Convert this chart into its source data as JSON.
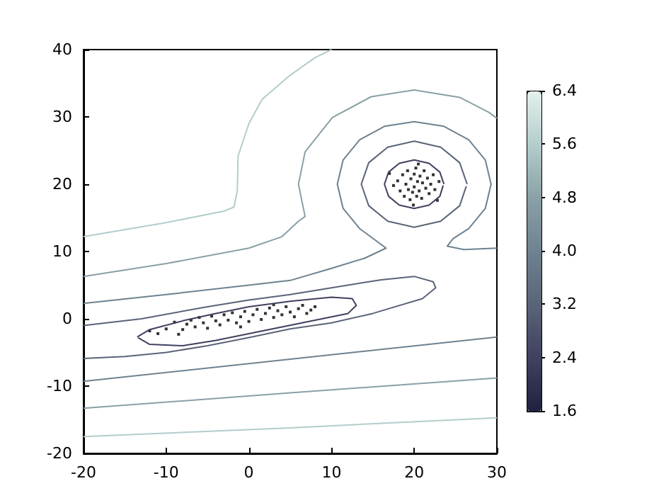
{
  "chart_data": {
    "type": "line",
    "xlim": [
      -20,
      30
    ],
    "ylim": [
      -20,
      40
    ],
    "xticks": [
      -20,
      -10,
      0,
      10,
      20,
      30
    ],
    "yticks": [
      -20,
      -10,
      0,
      10,
      20,
      30,
      40
    ],
    "grid": false,
    "clim": [
      1.6,
      6.4
    ],
    "cticks": [
      1.6,
      2.4,
      3.2,
      {
        "value": 4,
        "label": "4.0"
      },
      4.8,
      5.6,
      6.4
    ],
    "series": [
      {
        "marker": "none",
        "color": "#404060",
        "x": [
          -13.5,
          -12,
          -8,
          -4,
          0,
          5,
          10,
          12.5,
          13,
          12,
          8,
          4,
          0,
          -4,
          -8,
          -12,
          -13.4
        ],
        "values": [
          -2.7,
          -1.6,
          -0.3,
          0.8,
          1.8,
          2.6,
          3.2,
          3,
          2,
          0.8,
          -0.2,
          -1.2,
          -2.2,
          -3.2,
          -4,
          -3.8,
          -2.8
        ]
      },
      {
        "marker": "none",
        "color": "#404060",
        "x": [
          23.6,
          23.1,
          21.8,
          20,
          18.2,
          16.9,
          16.4,
          16.9,
          18.2,
          20,
          21.8,
          23.1,
          23.5
        ],
        "values": [
          20,
          21.8,
          23.1,
          23.6,
          23.1,
          21.8,
          20,
          18.2,
          16.9,
          16.4,
          16.9,
          18.2,
          19.8
        ]
      },
      {
        "marker": "none",
        "color": "#5a6478",
        "x": [
          -20,
          -13,
          -5,
          0,
          5,
          10,
          16,
          20,
          22.3,
          22.6,
          21,
          15,
          10,
          5,
          0,
          -5,
          -10,
          -15,
          -20
        ],
        "values": [
          -1,
          0,
          1.8,
          2.8,
          3.6,
          4.6,
          5.8,
          6.3,
          5.5,
          4.6,
          3,
          0.8,
          -0.6,
          -1.5,
          -2.8,
          -4,
          -5,
          -5.6,
          -5.9
        ]
      },
      {
        "marker": "none",
        "color": "#5a6478",
        "x": [
          26.4,
          25.5,
          23.2,
          20,
          16.8,
          14.5,
          13.6,
          14.5,
          16.8,
          20,
          23.2,
          25.5,
          26.3
        ],
        "values": [
          20,
          23.2,
          25.5,
          26.4,
          25.5,
          23.2,
          20,
          16.8,
          14.5,
          13.6,
          14.5,
          16.8,
          19.7
        ]
      },
      {
        "marker": "none",
        "color": "#6e8290",
        "x": [
          -20,
          -10,
          0,
          5,
          10,
          14,
          16.6,
          15.5,
          13.4,
          11.4,
          10.7,
          11.4,
          13.4,
          16.4,
          20,
          23.6,
          26.6,
          28.6,
          29.3,
          28.6,
          26.6,
          24.7,
          24,
          26,
          30
        ],
        "values": [
          2.3,
          3.6,
          5,
          5.7,
          7.5,
          9,
          10.5,
          11.5,
          13.4,
          16.4,
          20,
          23.6,
          26.6,
          28.6,
          29.3,
          28.6,
          26.6,
          23.6,
          20,
          16.4,
          13.4,
          11.9,
          10.8,
          10.3,
          10.5
        ]
      },
      {
        "marker": "none",
        "color": "#6e8290",
        "x": [
          -20,
          5,
          30
        ],
        "values": [
          -9.3,
          -6,
          -2.7
        ]
      },
      {
        "marker": "none",
        "color": "#8aa0a6",
        "x": [
          -20,
          -10,
          0,
          4,
          6,
          6.8,
          6,
          6.8,
          10.1,
          14.8,
          20,
          25.5,
          29,
          30
        ],
        "values": [
          6.3,
          8.2,
          10.5,
          12.2,
          14.5,
          15.2,
          20,
          24.8,
          29.9,
          33,
          34,
          32.9,
          30.7,
          29.8
        ]
      },
      {
        "marker": "none",
        "color": "#8aa0a6",
        "x": [
          -20,
          5,
          30
        ],
        "values": [
          -13.3,
          -11,
          -8.8
        ]
      },
      {
        "marker": "none",
        "color": "#b4cdcc",
        "x": [
          -20,
          -10,
          -3,
          -1.8,
          -1.4,
          -1.3,
          0,
          1.6,
          5,
          8,
          10
        ],
        "values": [
          12.2,
          14.3,
          16,
          16.6,
          19,
          24.2,
          29,
          32.6,
          36.2,
          38.8,
          40
        ]
      },
      {
        "marker": "none",
        "color": "#b4cdcc",
        "x": [
          -20,
          5,
          30
        ],
        "values": [
          -17.5,
          -16.2,
          -14.7
        ]
      },
      {
        "type": "scatter",
        "marker": "square",
        "color": "#000000",
        "x": [
          -12,
          -11,
          -10,
          -9,
          -8,
          -7.5,
          -7,
          -6.5,
          -6,
          -5.5,
          -5,
          -4.5,
          -4,
          -3.5,
          -3,
          -2.5,
          -2,
          -1.5,
          -1,
          -0.5,
          0,
          0.5,
          1,
          1.5,
          2,
          2.5,
          3,
          3.5,
          4,
          4.5,
          5,
          5.5,
          6,
          6.5,
          7,
          7.5,
          8,
          -8.5,
          -1,
          3,
          18,
          18.3,
          18.6,
          18.8,
          19,
          19.2,
          19.3,
          19.5,
          19.6,
          19.8,
          20,
          20,
          20.2,
          20.3,
          20.4,
          20.6,
          20.7,
          20.9,
          21,
          21.2,
          21.4,
          21.6,
          21.8,
          22,
          22.3,
          22.5,
          17.5,
          23,
          19.9,
          20.5,
          17,
          22.8
        ],
        "values": [
          -1.8,
          -2.2,
          -1.5,
          -0.5,
          -1.6,
          -0.8,
          -0.2,
          -1.2,
          0.2,
          -0.6,
          -1.4,
          0.4,
          -0.3,
          -0.9,
          0.6,
          -0.2,
          0.9,
          -0.6,
          0.3,
          1.1,
          -0.4,
          0.6,
          1.4,
          -0.1,
          0.8,
          1.6,
          0.2,
          1.2,
          0.6,
          1.8,
          1,
          0.3,
          1.5,
          2,
          0.8,
          1.3,
          1.8,
          -2.3,
          -1.2,
          2.1,
          20.5,
          19,
          21.4,
          18.2,
          20,
          22,
          19.2,
          17.7,
          20.8,
          18.8,
          21.5,
          19.6,
          22.4,
          18.2,
          20.4,
          19,
          21.2,
          17.9,
          20.2,
          22,
          19.4,
          20.9,
          18.6,
          20,
          21.4,
          19.2,
          19.8,
          20.4,
          16.9,
          23,
          21.6,
          17.6
        ]
      }
    ]
  }
}
